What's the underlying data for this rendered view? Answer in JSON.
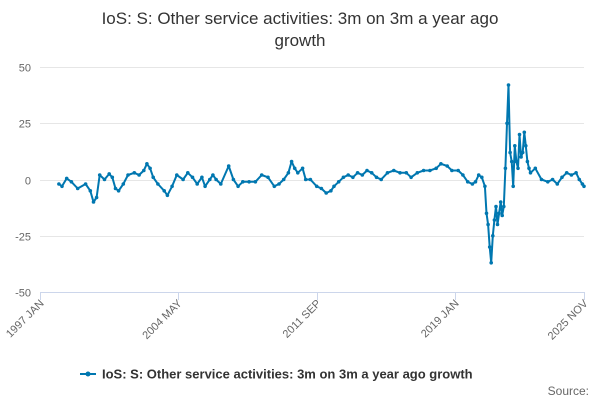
{
  "chart_data": {
    "type": "line",
    "title_lines": [
      "IoS: S: Other service activities: 3m on 3m a year ago",
      "growth"
    ],
    "x_start": "1997-01",
    "x_end": "2025-11",
    "x_ticks": [
      {
        "label": "1997 JAN",
        "date": "1997-01"
      },
      {
        "label": "2004 MAY",
        "date": "2004-05"
      },
      {
        "label": "2011 SEP",
        "date": "2011-09"
      },
      {
        "label": "2019 JAN",
        "date": "2019-01"
      },
      {
        "label": "2025 NOV",
        "date": "2025-11"
      }
    ],
    "y_ticks": [
      50,
      25,
      0,
      -25,
      -50
    ],
    "ylim": [
      -50,
      50
    ],
    "grid": true,
    "legend_position": "bottom-center",
    "series": [
      {
        "name": "IoS: S: Other service activities: 3m on 3m a year ago growth",
        "color": "#0077b0",
        "points": [
          [
            "1998-01",
            -2
          ],
          [
            "1998-03",
            -3
          ],
          [
            "1998-06",
            0.5
          ],
          [
            "1998-09",
            -1
          ],
          [
            "1999-01",
            -4
          ],
          [
            "1999-06",
            -2
          ],
          [
            "1999-09",
            -5
          ],
          [
            "1999-11",
            -10
          ],
          [
            "2000-01",
            -8
          ],
          [
            "2000-03",
            2
          ],
          [
            "2000-06",
            0
          ],
          [
            "2000-09",
            2.5
          ],
          [
            "2000-11",
            1
          ],
          [
            "2001-01",
            -4
          ],
          [
            "2001-03",
            -5
          ],
          [
            "2001-06",
            -2
          ],
          [
            "2001-09",
            2
          ],
          [
            "2002-01",
            3
          ],
          [
            "2002-04",
            2
          ],
          [
            "2002-07",
            4
          ],
          [
            "2002-09",
            7
          ],
          [
            "2002-11",
            5
          ],
          [
            "2003-01",
            1
          ],
          [
            "2003-04",
            -2
          ],
          [
            "2003-08",
            -5
          ],
          [
            "2003-10",
            -7
          ],
          [
            "2004-01",
            -3
          ],
          [
            "2004-04",
            2
          ],
          [
            "2004-08",
            0
          ],
          [
            "2004-11",
            3
          ],
          [
            "2005-02",
            1
          ],
          [
            "2005-05",
            -2
          ],
          [
            "2005-08",
            1
          ],
          [
            "2005-10",
            -3
          ],
          [
            "2006-01",
            0
          ],
          [
            "2006-03",
            2
          ],
          [
            "2006-05",
            0
          ],
          [
            "2006-08",
            -2
          ],
          [
            "2007-01",
            6
          ],
          [
            "2007-04",
            0
          ],
          [
            "2007-07",
            -3
          ],
          [
            "2007-10",
            -1
          ],
          [
            "2008-02",
            -1
          ],
          [
            "2008-06",
            -1
          ],
          [
            "2008-10",
            2
          ],
          [
            "2009-02",
            1
          ],
          [
            "2009-06",
            -3
          ],
          [
            "2009-09",
            -2
          ],
          [
            "2009-12",
            0
          ],
          [
            "2010-03",
            3
          ],
          [
            "2010-05",
            8
          ],
          [
            "2010-07",
            5
          ],
          [
            "2010-09",
            3
          ],
          [
            "2010-12",
            5
          ],
          [
            "2011-02",
            0
          ],
          [
            "2011-05",
            0
          ],
          [
            "2011-09",
            -3
          ],
          [
            "2011-12",
            -4
          ],
          [
            "2012-03",
            -6
          ],
          [
            "2012-06",
            -5
          ],
          [
            "2012-08",
            -3
          ],
          [
            "2012-11",
            -1
          ],
          [
            "2013-02",
            1
          ],
          [
            "2013-05",
            2
          ],
          [
            "2013-08",
            1
          ],
          [
            "2013-11",
            3
          ],
          [
            "2014-02",
            2
          ],
          [
            "2014-05",
            4
          ],
          [
            "2014-08",
            3
          ],
          [
            "2014-11",
            1
          ],
          [
            "2015-02",
            0
          ],
          [
            "2015-06",
            3
          ],
          [
            "2015-10",
            4
          ],
          [
            "2016-02",
            3
          ],
          [
            "2016-06",
            3
          ],
          [
            "2016-09",
            1
          ],
          [
            "2017-01",
            3
          ],
          [
            "2017-05",
            4
          ],
          [
            "2017-09",
            4
          ],
          [
            "2018-01",
            5
          ],
          [
            "2018-04",
            7
          ],
          [
            "2018-08",
            6
          ],
          [
            "2018-11",
            4
          ],
          [
            "2019-03",
            4
          ],
          [
            "2019-06",
            2
          ],
          [
            "2019-09",
            -1
          ],
          [
            "2019-12",
            -2
          ],
          [
            "2020-02",
            -1
          ],
          [
            "2020-04",
            2
          ],
          [
            "2020-06",
            1
          ],
          [
            "2020-08",
            -3
          ],
          [
            "2020-09",
            -15
          ],
          [
            "2020-10",
            -20
          ],
          [
            "2020-11",
            -30
          ],
          [
            "2020-12",
            -37
          ],
          [
            "2021-01",
            -25
          ],
          [
            "2021-02",
            -18
          ],
          [
            "2021-03",
            -12
          ],
          [
            "2021-04",
            -20
          ],
          [
            "2021-05",
            -15
          ],
          [
            "2021-06",
            -10
          ],
          [
            "2021-07",
            -16
          ],
          [
            "2021-08",
            -12
          ],
          [
            "2021-09",
            5
          ],
          [
            "2021-10",
            25
          ],
          [
            "2021-11",
            42
          ],
          [
            "2021-12",
            12
          ],
          [
            "2022-01",
            8
          ],
          [
            "2022-02",
            -3
          ],
          [
            "2022-03",
            15
          ],
          [
            "2022-04",
            8
          ],
          [
            "2022-05",
            5
          ],
          [
            "2022-06",
            20
          ],
          [
            "2022-07",
            10
          ],
          [
            "2022-08",
            12
          ],
          [
            "2022-09",
            21
          ],
          [
            "2022-10",
            15
          ],
          [
            "2022-11",
            8
          ],
          [
            "2022-12",
            5
          ],
          [
            "2023-01",
            3
          ],
          [
            "2023-04",
            5
          ],
          [
            "2023-08",
            0
          ],
          [
            "2023-12",
            -1
          ],
          [
            "2024-03",
            0
          ],
          [
            "2024-06",
            -2
          ],
          [
            "2024-09",
            1
          ],
          [
            "2024-12",
            3
          ],
          [
            "2025-03",
            2
          ],
          [
            "2025-06",
            3
          ],
          [
            "2025-08",
            0
          ],
          [
            "2025-10",
            -2
          ],
          [
            "2025-11",
            -3
          ]
        ]
      }
    ],
    "credit": "Source:"
  }
}
